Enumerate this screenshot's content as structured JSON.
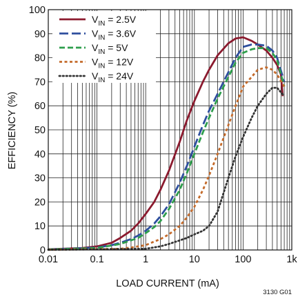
{
  "chart_data": {
    "type": "line",
    "title": "",
    "xlabel": "LOAD CURRENT (mA)",
    "ylabel": "EFFICIENCY (%)",
    "xscale": "log",
    "xlim": [
      0.01,
      1000
    ],
    "ylim": [
      0,
      100
    ],
    "grid": "on",
    "legend_position": "top-left",
    "x_ticks": [
      {
        "value": 0.01,
        "label": "0.01"
      },
      {
        "value": 0.1,
        "label": "0.1"
      },
      {
        "value": 1,
        "label": "1"
      },
      {
        "value": 10,
        "label": "10"
      },
      {
        "value": 100,
        "label": "100"
      },
      {
        "value": 1000,
        "label": "1k"
      }
    ],
    "y_ticks": [
      0,
      10,
      20,
      30,
      40,
      50,
      60,
      70,
      80,
      90,
      100
    ],
    "figure_id": "3130 G01",
    "series": [
      {
        "name_main": "V",
        "name_sub": "IN",
        "name_rest": " = 2.5V",
        "color": "#8b1a2e",
        "dash": "solid",
        "x": [
          0.01,
          0.05,
          0.1,
          0.2,
          0.3,
          0.5,
          0.7,
          1,
          1.5,
          2,
          3,
          5,
          7,
          10,
          15,
          20,
          30,
          50,
          70,
          100,
          150,
          200,
          300,
          400,
          500,
          600,
          650
        ],
        "y": [
          0.3,
          0.8,
          1.5,
          3,
          5,
          8,
          11,
          15,
          20,
          25,
          33,
          45,
          54,
          62,
          70,
          75,
          81,
          86,
          88,
          88.5,
          87,
          85.5,
          83,
          80,
          77,
          73,
          64
        ]
      },
      {
        "name_main": "V",
        "name_sub": "IN",
        "name_rest": " = 3.6V",
        "color": "#2e4f9e",
        "dash": "long",
        "x": [
          0.01,
          0.1,
          0.2,
          0.3,
          0.5,
          0.7,
          1,
          1.5,
          2,
          3,
          5,
          7,
          10,
          15,
          20,
          30,
          50,
          70,
          100,
          150,
          200,
          300,
          400,
          500,
          700
        ],
        "y": [
          0.2,
          1,
          2,
          3,
          4.5,
          6,
          8,
          11,
          14,
          19,
          28,
          35,
          43,
          52,
          58,
          65,
          74,
          80,
          84.5,
          85.5,
          85.5,
          85,
          83,
          80,
          70
        ]
      },
      {
        "name_main": "V",
        "name_sub": "IN",
        "name_rest": " = 5V",
        "color": "#2e9e4c",
        "dash": "medium",
        "x": [
          0.01,
          0.1,
          0.3,
          0.5,
          0.7,
          1,
          1.5,
          2,
          3,
          5,
          7,
          10,
          15,
          20,
          30,
          50,
          70,
          100,
          150,
          200,
          300,
          400,
          500,
          700
        ],
        "y": [
          0.2,
          0.8,
          2.5,
          4,
          5,
          7,
          9.5,
          12,
          17,
          25,
          32,
          40,
          49,
          55,
          63,
          72,
          78,
          82,
          83.5,
          84,
          84,
          82,
          79,
          68
        ]
      },
      {
        "name_main": "V",
        "name_sub": "IN",
        "name_rest": " = 12V",
        "color": "#c46a2a",
        "dash": "short",
        "x": [
          0.01,
          0.3,
          0.5,
          1,
          1.5,
          2,
          3,
          5,
          7,
          10,
          15,
          20,
          30,
          50,
          70,
          100,
          150,
          200,
          300,
          400,
          500,
          700
        ],
        "y": [
          0.1,
          0.5,
          1,
          2,
          3.5,
          4.5,
          6.5,
          10,
          13.5,
          18,
          25,
          31,
          40,
          52,
          60,
          68,
          72,
          75,
          76,
          75,
          73,
          68
        ]
      },
      {
        "name_main": "V",
        "name_sub": "IN",
        "name_rest": " = 24V",
        "color": "#333333",
        "dash": "dotted",
        "x": [
          0.01,
          1,
          2,
          3,
          5,
          7,
          10,
          15,
          20,
          30,
          50,
          70,
          100,
          150,
          200,
          300,
          400,
          500,
          700
        ],
        "y": [
          0.1,
          0.5,
          1.5,
          2.5,
          4,
          5,
          6.5,
          8,
          10,
          16,
          30,
          39,
          47,
          55,
          60,
          65,
          67.5,
          67.5,
          64
        ]
      }
    ]
  }
}
